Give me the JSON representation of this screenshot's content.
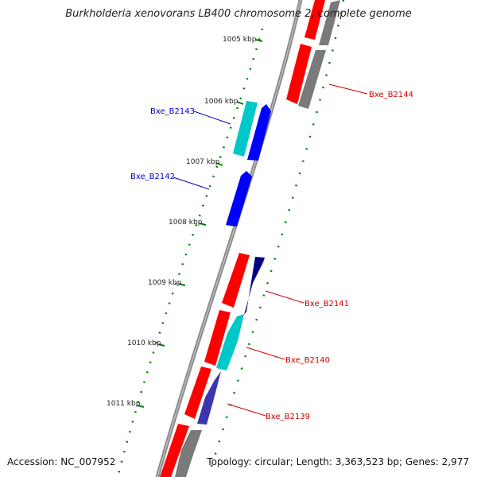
{
  "title": "Burkholderia xenovorans LB400 chromosome 2, complete genome",
  "accession": "Accession: NC_007952",
  "summary": "Topology: circular; Length: 3,363,523 bp; Genes: 2,977",
  "colors": {
    "forward_red": "#ff0000",
    "reverse_gray": "#7a7a7a",
    "blue": "#0000ff",
    "navy": "#000080",
    "cyan": "#00c8c8",
    "tick_green": "#008000",
    "label_red": "#cc0000",
    "label_blue": "#0000cc"
  },
  "ticks": [
    "1005 kbp",
    "1006 kbp",
    "1007 kbp",
    "1008 kbp",
    "1009 kbp",
    "1010 kbp",
    "1011 kbp"
  ],
  "gene_labels": [
    "Bxe_B2144",
    "Bxe_B2143",
    "Bxe_B2142",
    "Bxe_B2141",
    "Bxe_B2140",
    "Bxe_B2139"
  ]
}
